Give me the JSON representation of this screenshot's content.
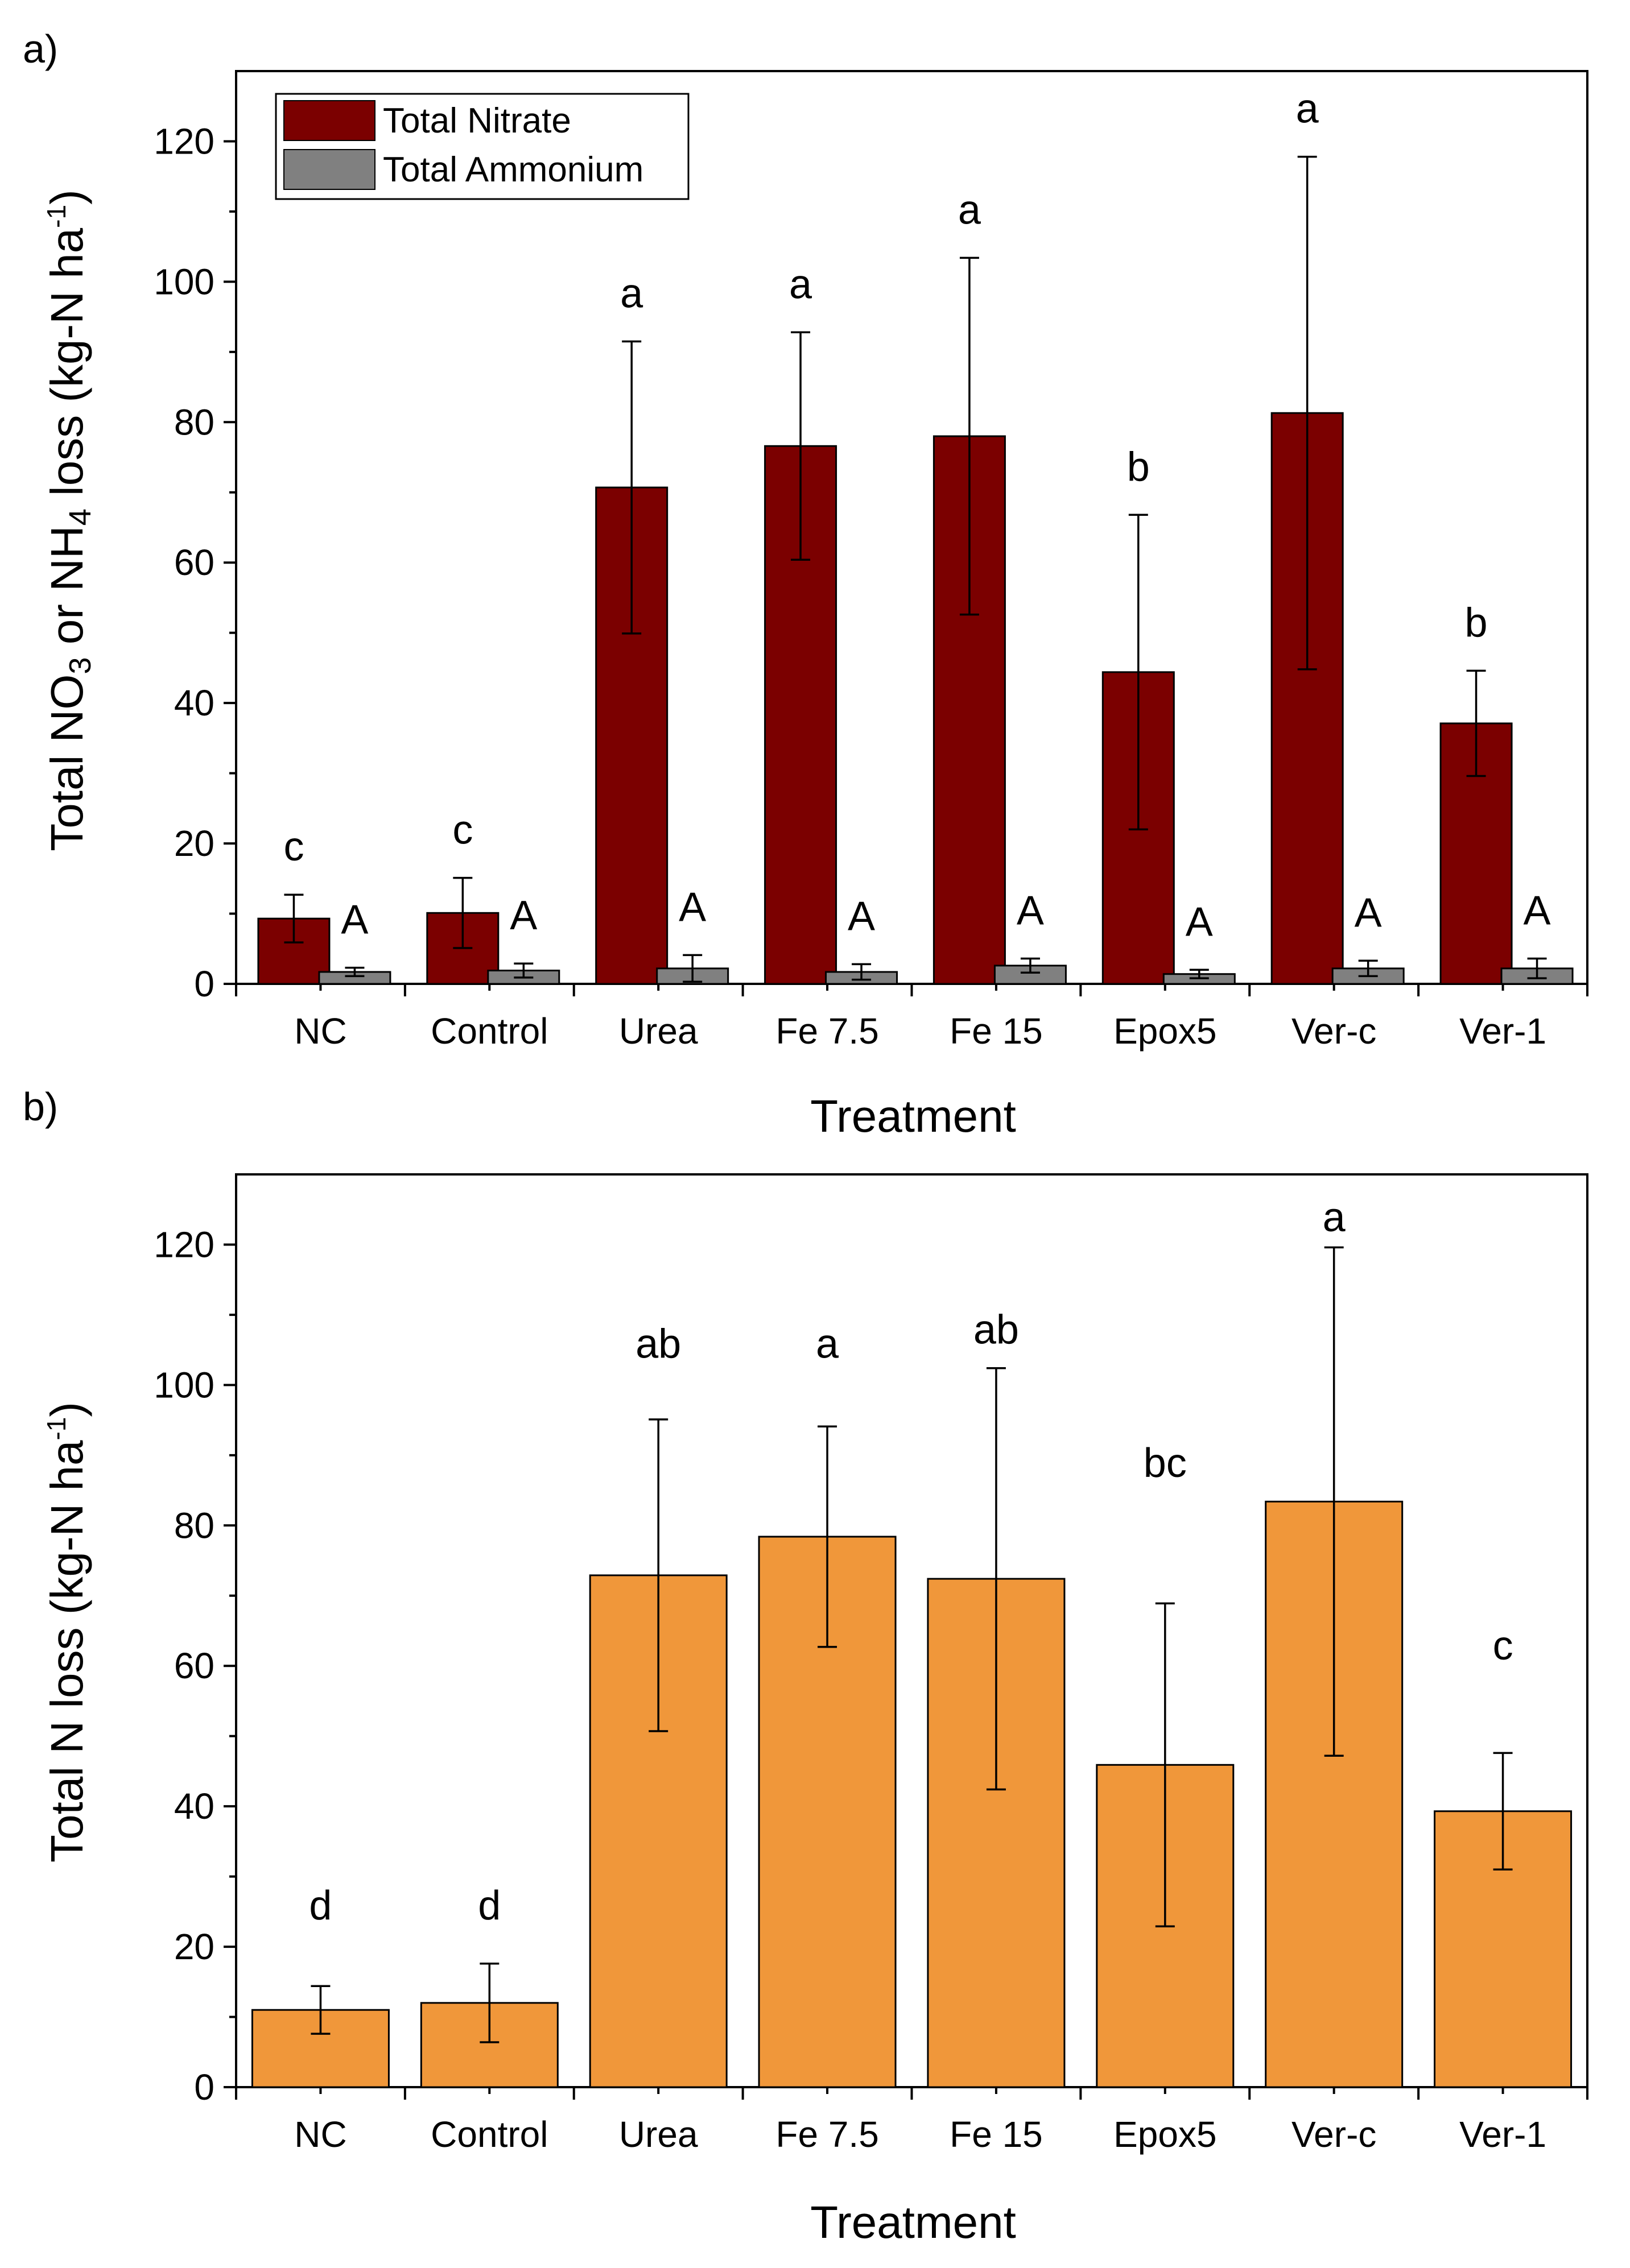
{
  "chart_data": [
    {
      "panel_label": "a)",
      "type": "bar",
      "categories": [
        "NC",
        "Control",
        "Urea",
        "Fe 7.5",
        "Fe 15",
        "Epox5",
        "Ver-c",
        "Ver-1"
      ],
      "series": [
        {
          "name": "Total Nitrate",
          "color": "#7b0000",
          "values": [
            9.3,
            10.1,
            70.7,
            76.6,
            78.0,
            44.4,
            81.3,
            37.1
          ],
          "errors": [
            3.4,
            5.0,
            20.8,
            16.2,
            25.4,
            22.4,
            36.5,
            7.5
          ],
          "significance": [
            "c",
            "c",
            "a",
            "a",
            "a",
            "b",
            "a",
            "b"
          ]
        },
        {
          "name": "Total Ammonium",
          "color": "#808080",
          "values": [
            1.7,
            1.9,
            2.2,
            1.7,
            2.6,
            1.4,
            2.2,
            2.2
          ],
          "errors": [
            0.6,
            1.0,
            1.9,
            1.1,
            1.0,
            0.6,
            1.1,
            1.4
          ],
          "significance": [
            "A",
            "A",
            "A",
            "A",
            "A",
            "A",
            "A",
            "A"
          ]
        }
      ],
      "xlabel": "Treatment",
      "ylabel": "Total NO3 or NH4 loss (kg-N ha-1)",
      "ylabel_parts": {
        "pre": "Total NO",
        "sub1": "3",
        "mid": " or NH",
        "sub2": "4",
        "post": " loss (kg-N ha",
        "sup": "-1",
        "end": ")"
      },
      "ylim": [
        0,
        130
      ],
      "yticks": [
        0,
        20,
        40,
        60,
        80,
        100,
        120
      ],
      "legend": "top-left",
      "grid": false
    },
    {
      "panel_label": "b)",
      "type": "bar",
      "categories": [
        "NC",
        "Control",
        "Urea",
        "Fe 7.5",
        "Fe 15",
        "Epox5",
        "Ver-c",
        "Ver-1"
      ],
      "series": [
        {
          "name": "Total N loss",
          "color": "#f0973a",
          "values": [
            11.0,
            12.0,
            72.9,
            78.4,
            72.4,
            45.9,
            83.4,
            39.3
          ],
          "errors": [
            3.4,
            5.6,
            22.2,
            15.7,
            30.0,
            23.0,
            36.2,
            8.3
          ],
          "significance": [
            "d",
            "d",
            "ab",
            "a",
            "ab",
            "bc",
            "a",
            "c"
          ],
          "significance_y": [
            26,
            26,
            106,
            106,
            108,
            89,
            124,
            63
          ]
        }
      ],
      "xlabel": "Treatment",
      "ylabel": "Total N loss (kg-N ha-1)",
      "ylabel_parts": {
        "pre": "Total N loss (kg-N ha",
        "sup": "-1",
        "end": ")"
      },
      "ylim": [
        0,
        130
      ],
      "yticks": [
        0,
        20,
        40,
        60,
        80,
        100,
        120
      ],
      "legend": "none",
      "grid": false
    }
  ]
}
